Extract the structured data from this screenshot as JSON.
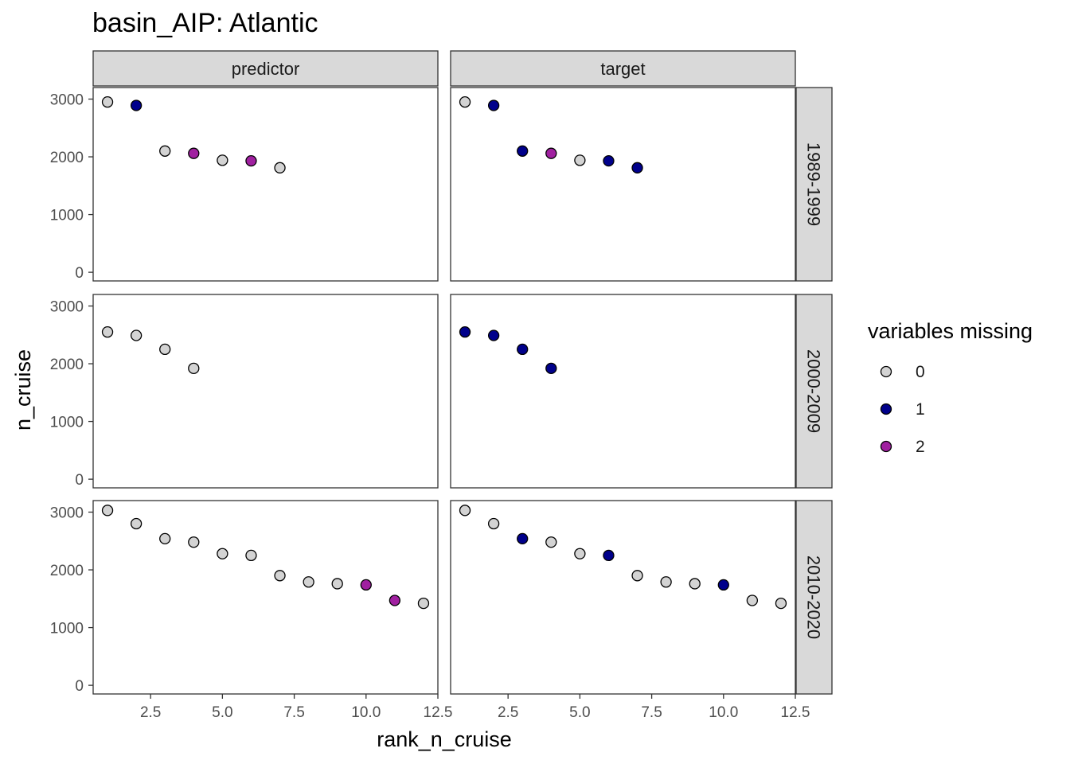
{
  "chart_data": {
    "type": "scatter",
    "title": "basin_AIP: Atlantic",
    "xlabel": "rank_n_cruise",
    "ylabel": "n_cruise",
    "xlim": [
      0.5,
      12.5
    ],
    "ylim": [
      -150,
      3200
    ],
    "x_ticks": [
      2.5,
      5.0,
      7.5,
      10.0,
      12.5
    ],
    "x_tick_labels": [
      "2.5",
      "5.0",
      "7.5",
      "10.0",
      "12.5"
    ],
    "y_ticks": [
      0,
      1000,
      2000,
      3000
    ],
    "y_tick_labels": [
      "0",
      "1000",
      "2000",
      "3000"
    ],
    "grid": false,
    "legend": {
      "title": "variables missing",
      "position": "right",
      "entries": [
        {
          "label": "0",
          "color": "#d3d3d3"
        },
        {
          "label": "1",
          "color": "#00008b"
        },
        {
          "label": "2",
          "color": "#a020a0"
        }
      ]
    },
    "facet_columns": [
      "predictor",
      "target"
    ],
    "facet_rows": [
      "1989-1999",
      "2000-2009",
      "2010-2020"
    ],
    "panels": [
      {
        "col": 0,
        "row": 0,
        "x": [
          1,
          2,
          3,
          4,
          5,
          6,
          7
        ],
        "y": [
          2950,
          2890,
          2100,
          2060,
          1940,
          1930,
          1810
        ],
        "missing": [
          0,
          1,
          0,
          2,
          0,
          2,
          0
        ]
      },
      {
        "col": 1,
        "row": 0,
        "x": [
          1,
          2,
          3,
          4,
          5,
          6,
          7
        ],
        "y": [
          2950,
          2890,
          2100,
          2060,
          1940,
          1930,
          1810
        ],
        "missing": [
          0,
          1,
          1,
          2,
          0,
          1,
          1
        ]
      },
      {
        "col": 0,
        "row": 1,
        "x": [
          1,
          2,
          3,
          4
        ],
        "y": [
          2550,
          2490,
          2250,
          1920
        ],
        "missing": [
          0,
          0,
          0,
          0
        ]
      },
      {
        "col": 1,
        "row": 1,
        "x": [
          1,
          2,
          3,
          4
        ],
        "y": [
          2550,
          2490,
          2250,
          1920
        ],
        "missing": [
          1,
          1,
          1,
          1
        ]
      },
      {
        "col": 0,
        "row": 2,
        "x": [
          1,
          2,
          3,
          4,
          5,
          6,
          7,
          8,
          9,
          10,
          11,
          12
        ],
        "y": [
          3030,
          2800,
          2540,
          2480,
          2280,
          2250,
          1900,
          1790,
          1760,
          1740,
          1470,
          1420
        ],
        "missing": [
          0,
          0,
          0,
          0,
          0,
          0,
          0,
          0,
          0,
          2,
          2,
          0
        ]
      },
      {
        "col": 1,
        "row": 2,
        "x": [
          1,
          2,
          3,
          4,
          5,
          6,
          7,
          8,
          9,
          10,
          11,
          12
        ],
        "y": [
          3030,
          2800,
          2540,
          2480,
          2280,
          2250,
          1900,
          1790,
          1760,
          1740,
          1470,
          1420
        ],
        "missing": [
          0,
          0,
          1,
          0,
          0,
          1,
          0,
          0,
          0,
          1,
          0,
          0
        ]
      }
    ]
  }
}
